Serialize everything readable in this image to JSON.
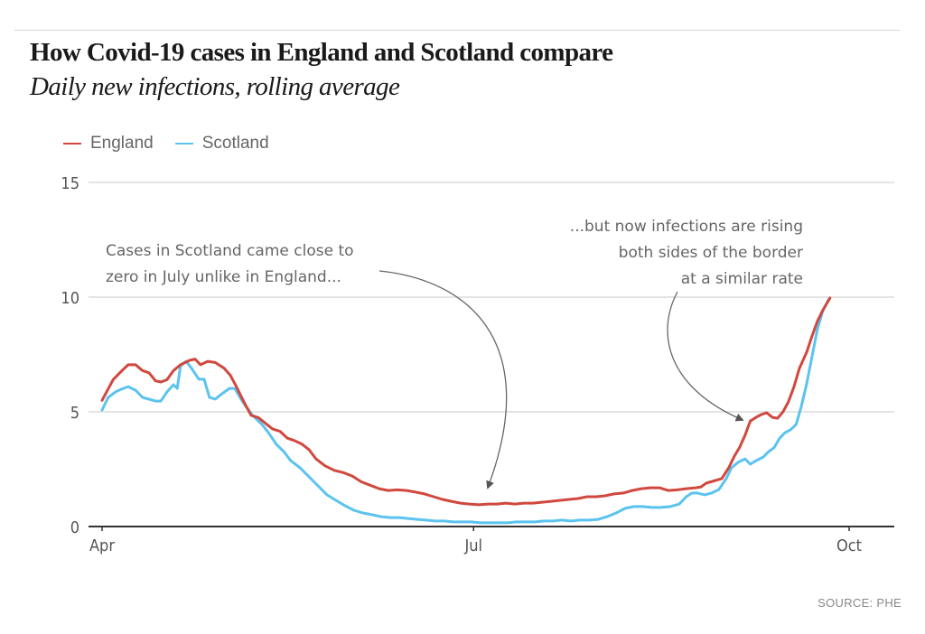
{
  "header": {
    "title": "How Covid-19 cases in England and Scotland compare",
    "subtitle": "Daily new infections, rolling average"
  },
  "source": "SOURCE: PHE",
  "chart_data": {
    "type": "line",
    "title": "How Covid-19 cases in England and Scotland compare",
    "subtitle": "Daily new infections, rolling average",
    "xlabel": "",
    "ylabel": "",
    "x_unit": "days since 1 April",
    "xlim": [
      0,
      186
    ],
    "ylim": [
      0,
      15
    ],
    "yticks": [
      0,
      5,
      10,
      15
    ],
    "ytick_labels": [
      "0",
      "5",
      "10",
      "15"
    ],
    "xticks": [
      {
        "x": 0,
        "label": "Apr"
      },
      {
        "x": 91,
        "label": "Jul"
      },
      {
        "x": 183,
        "label": "Oct"
      }
    ],
    "grid": true,
    "legend": "top-left",
    "series": [
      {
        "name": "England",
        "color": "#d0483e",
        "x": [
          0,
          2.7,
          4.9,
          6.4,
          8.2,
          9.9,
          11.5,
          13.1,
          14.4,
          15.9,
          17.5,
          19.2,
          21.5,
          22.8,
          24.1,
          25.9,
          27.7,
          29.9,
          31.4,
          32.9,
          34.7,
          36.5,
          38.3,
          40.0,
          41.8,
          43.6,
          45.4,
          47.1,
          48.9,
          50.7,
          52.4,
          54.6,
          56.9,
          59.1,
          61.3,
          63.5,
          65.7,
          67.9,
          70.1,
          72.3,
          74.6,
          76.8,
          79.0,
          81.2,
          83.4,
          85.6,
          87.8,
          90.0,
          92.3,
          94.5,
          96.7,
          98.9,
          101.1,
          103.3,
          105.5,
          107.7,
          110.0,
          112.2,
          114.4,
          116.6,
          118.8,
          121.0,
          123.2,
          125.4,
          127.7,
          129.9,
          132.1,
          134.3,
          136.5,
          138.7,
          140.9,
          143.1,
          145.4,
          146.7,
          148.0,
          151.8,
          153.5,
          154.9,
          156.2,
          157.5,
          158.8,
          160.2,
          161.5,
          162.8,
          164.2,
          165.5,
          166.8,
          168.1,
          169.5,
          170.8,
          172.6,
          173.9,
          175.2,
          176.5,
          178.3
        ],
        "values": [
          5.5,
          6.4,
          6.8,
          7.05,
          7.05,
          6.8,
          6.7,
          6.35,
          6.3,
          6.4,
          6.8,
          7.05,
          7.25,
          7.3,
          7.05,
          7.2,
          7.15,
          6.9,
          6.6,
          6.1,
          5.45,
          4.85,
          4.75,
          4.5,
          4.25,
          4.15,
          3.85,
          3.75,
          3.6,
          3.35,
          2.95,
          2.65,
          2.45,
          2.35,
          2.2,
          1.95,
          1.8,
          1.65,
          1.57,
          1.6,
          1.57,
          1.5,
          1.42,
          1.3,
          1.18,
          1.1,
          1.02,
          0.98,
          0.95,
          0.98,
          0.98,
          1.02,
          0.98,
          1.02,
          1.02,
          1.06,
          1.1,
          1.14,
          1.18,
          1.22,
          1.3,
          1.3,
          1.34,
          1.42,
          1.46,
          1.57,
          1.65,
          1.69,
          1.69,
          1.57,
          1.6,
          1.65,
          1.69,
          1.73,
          1.89,
          2.09,
          2.56,
          3.07,
          3.46,
          3.98,
          4.6,
          4.76,
          4.88,
          4.96,
          4.76,
          4.72,
          5.0,
          5.43,
          6.1,
          6.89,
          7.6,
          8.3,
          8.94,
          9.41,
          9.96
        ]
      },
      {
        "name": "Scotland",
        "color": "#5bc3ef",
        "x": [
          0,
          1.5,
          3.3,
          4.9,
          6.4,
          8.2,
          9.9,
          11.5,
          13.1,
          14.4,
          15.9,
          17.5,
          18.4,
          19.2,
          20.6,
          21.9,
          23.7,
          25.0,
          26.3,
          27.7,
          29.4,
          31.2,
          32.5,
          33.8,
          35.2,
          36.9,
          39.2,
          40.9,
          42.7,
          44.5,
          46.2,
          48.5,
          50.7,
          52.9,
          55.1,
          57.3,
          59.5,
          61.7,
          63.9,
          66.2,
          68.4,
          70.6,
          72.8,
          75.0,
          77.2,
          79.4,
          81.6,
          83.8,
          86.1,
          88.3,
          90.5,
          92.7,
          94.9,
          97.1,
          99.3,
          101.5,
          103.8,
          106.0,
          108.2,
          110.4,
          112.6,
          114.8,
          117.0,
          119.2,
          121.5,
          123.7,
          125.9,
          128.1,
          130.3,
          132.5,
          134.7,
          136.9,
          139.2,
          141.4,
          143.1,
          144.5,
          145.8,
          147.6,
          149.3,
          151.1,
          152.9,
          154.2,
          155.8,
          157.5,
          158.8,
          160.2,
          162.0,
          163.3,
          164.6,
          166.0,
          167.3,
          168.6,
          170.0,
          171.3,
          172.6,
          173.9,
          175.2,
          176.5,
          177.9
        ],
        "values": [
          5.08,
          5.63,
          5.87,
          6.0,
          6.1,
          5.94,
          5.63,
          5.55,
          5.47,
          5.47,
          5.87,
          6.18,
          6.02,
          7.0,
          7.2,
          6.9,
          6.42,
          6.42,
          5.63,
          5.55,
          5.79,
          6.02,
          6.02,
          5.63,
          5.24,
          4.84,
          4.45,
          4.06,
          3.58,
          3.27,
          2.87,
          2.56,
          2.17,
          1.77,
          1.38,
          1.14,
          0.91,
          0.71,
          0.59,
          0.51,
          0.43,
          0.39,
          0.39,
          0.35,
          0.31,
          0.28,
          0.24,
          0.24,
          0.2,
          0.2,
          0.2,
          0.16,
          0.16,
          0.16,
          0.16,
          0.2,
          0.2,
          0.2,
          0.24,
          0.24,
          0.28,
          0.24,
          0.28,
          0.28,
          0.31,
          0.43,
          0.59,
          0.79,
          0.87,
          0.87,
          0.83,
          0.83,
          0.87,
          0.98,
          1.3,
          1.46,
          1.46,
          1.38,
          1.46,
          1.61,
          2.09,
          2.56,
          2.8,
          2.95,
          2.72,
          2.87,
          3.03,
          3.27,
          3.43,
          3.86,
          4.09,
          4.21,
          4.45,
          5.24,
          6.22,
          7.4,
          8.58,
          9.37,
          9.88
        ]
      }
    ],
    "annotations": [
      {
        "lines": [
          "Cases in Scotland came close to",
          "zero in July unlike in England..."
        ],
        "target_series": "England",
        "target_x": 94,
        "align": "left"
      },
      {
        "lines": [
          "...but now infections are rising",
          "both sides of the border",
          "at a similar rate"
        ],
        "target_series": "England",
        "target_x": 154,
        "align": "right"
      }
    ]
  }
}
